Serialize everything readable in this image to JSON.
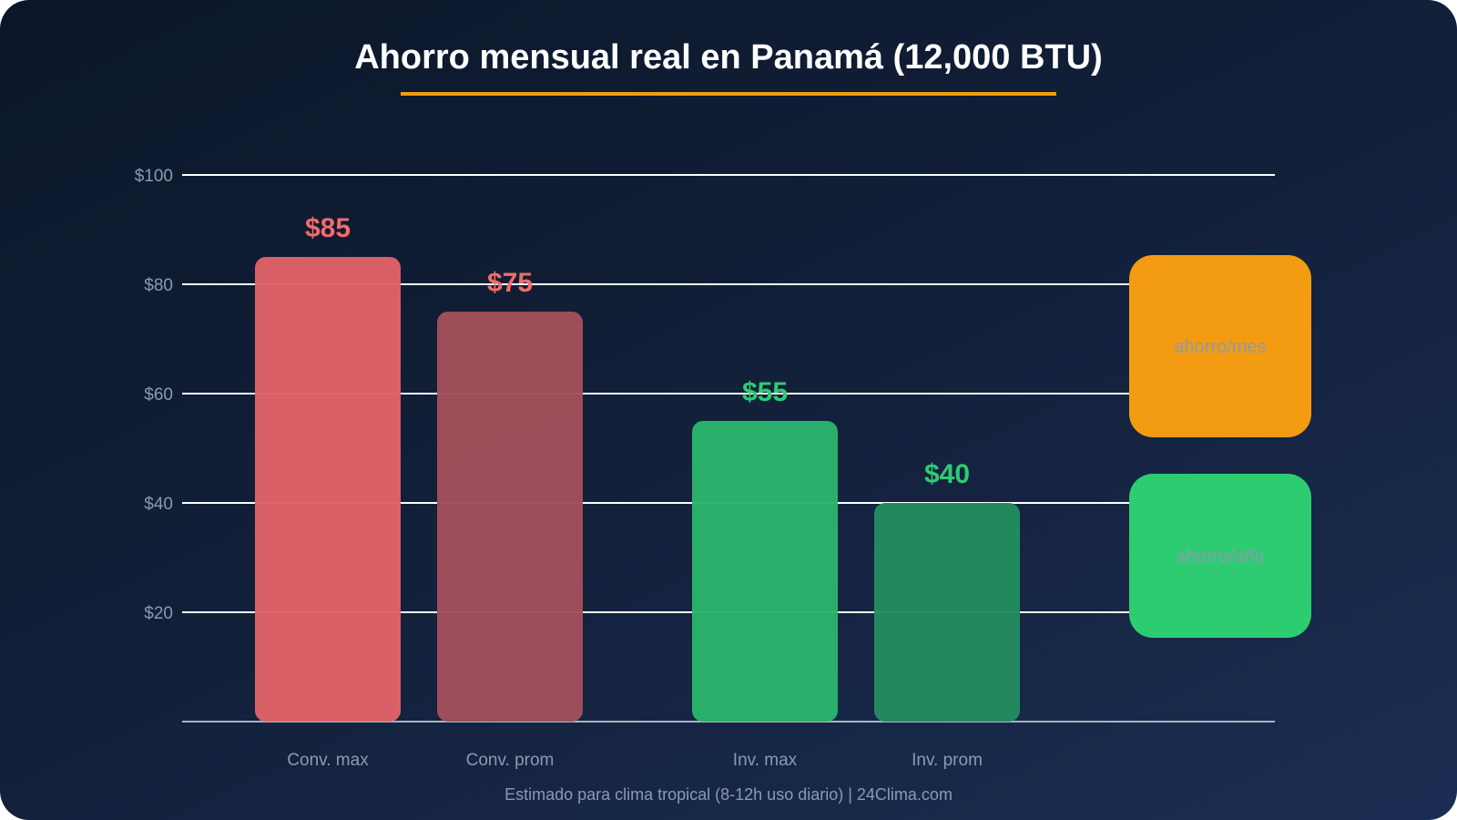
{
  "title": "Ahorro mensual real en Panamá (12,000 BTU)",
  "footer": "Estimado para clima tropical (8-12h uso diario) | 24Clima.com",
  "chart_data": {
    "type": "bar",
    "title": "Ahorro mensual real en Panamá (12,000 BTU)",
    "xlabel": "",
    "ylabel": "",
    "ylim": [
      0,
      100
    ],
    "yticks": [
      20,
      40,
      60,
      80,
      100
    ],
    "ytick_labels": [
      "$20",
      "$40",
      "$60",
      "$80",
      "$100"
    ],
    "grid": true,
    "categories": [
      "Conv. max",
      "Conv. prom",
      "Inv. max",
      "Inv. prom"
    ],
    "values": [
      85,
      75,
      55,
      40
    ],
    "value_labels": [
      "$85",
      "$75",
      "$55",
      "$40"
    ],
    "bar_colors": [
      "#e06268",
      "#a2505b",
      "#2bb46c",
      "#238c60"
    ],
    "label_colors": [
      "#f26b6b",
      "#f26b6b",
      "#2ecc71",
      "#2ecc71"
    ],
    "legend_boxes": [
      {
        "label": "ahorro/mes",
        "color": "#f39c12"
      },
      {
        "label": "ahorro/año",
        "color": "#2ecc71"
      }
    ]
  }
}
